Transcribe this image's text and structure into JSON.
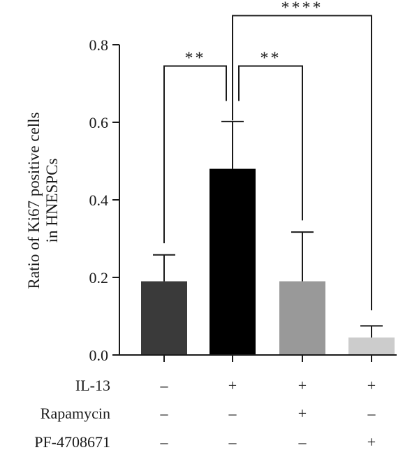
{
  "chart_data": {
    "type": "bar",
    "ylabel_lines": [
      "Ratio of Ki67 positive cells",
      "in HNESPCs"
    ],
    "ylim": [
      0,
      0.8
    ],
    "yticks": [
      0.0,
      0.2,
      0.4,
      0.6,
      0.8
    ],
    "ytick_labels": [
      "0.0",
      "0.2",
      "0.4",
      "0.6",
      "0.8"
    ],
    "values": [
      0.19,
      0.48,
      0.19,
      0.045
    ],
    "errors": [
      0.068,
      0.122,
      0.127,
      0.03
    ],
    "colors": [
      "#3a3a3a",
      "#000000",
      "#999999",
      "#cccccc"
    ],
    "grid": false,
    "treatment_rows": [
      {
        "label": "IL-13",
        "marks": [
          "–",
          "+",
          "+",
          "+"
        ]
      },
      {
        "label": "Rapamycin",
        "marks": [
          "–",
          "–",
          "+",
          "–"
        ]
      },
      {
        "label": "PF-4708671",
        "marks": [
          "–",
          "–",
          "–",
          "+"
        ]
      }
    ],
    "significance": [
      {
        "from": 0,
        "to": 1,
        "text": "**",
        "level": 0.745
      },
      {
        "from": 1,
        "to": 2,
        "text": "**",
        "level": 0.745
      },
      {
        "from": 1,
        "to": 3,
        "text": "****",
        "level": 0.875
      }
    ]
  }
}
